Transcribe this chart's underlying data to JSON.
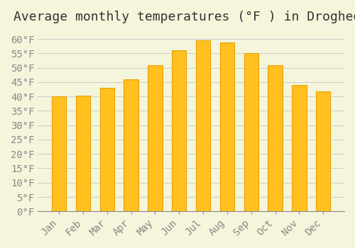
{
  "title": "Average monthly temperatures (°F ) in Drogheda",
  "months": [
    "Jan",
    "Feb",
    "Mar",
    "Apr",
    "May",
    "Jun",
    "Jul",
    "Aug",
    "Sep",
    "Oct",
    "Nov",
    "Dec"
  ],
  "values": [
    40.1,
    40.3,
    43.0,
    46.0,
    51.0,
    56.0,
    59.5,
    58.8,
    55.2,
    50.8,
    44.0,
    41.8
  ],
  "bar_color": "#FFC020",
  "bar_edge_color": "#E8A000",
  "background_color": "#F5F5DC",
  "grid_color": "#CCCCCC",
  "ylim": [
    0,
    63
  ],
  "yticks": [
    0,
    5,
    10,
    15,
    20,
    25,
    30,
    35,
    40,
    45,
    50,
    55,
    60
  ],
  "title_fontsize": 13,
  "tick_fontsize": 10,
  "title_color": "#333333",
  "tick_color": "#888888"
}
